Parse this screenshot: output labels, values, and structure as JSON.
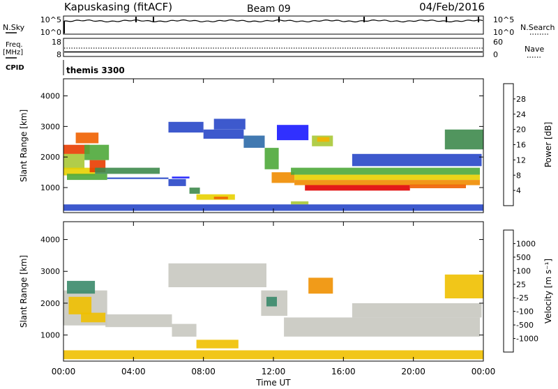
{
  "header": {
    "station": "Kapuskasing (fitACF)",
    "beam": "Beam 09",
    "date": "04/Feb/2016"
  },
  "params": {
    "nsky_label": "N.Sky",
    "nsearch_label": "N.Search",
    "freq_label_1": "Freq.",
    "freq_label_2": "[MHz]",
    "nave_label": "Nave",
    "cpid_label": "CPID",
    "program": "themis 3300",
    "left_ticks": [
      "10^5",
      "10^0",
      "18",
      "8"
    ],
    "right_ticks": [
      "10^5",
      "10^0",
      "60",
      "0"
    ]
  },
  "chart_data": [
    {
      "type": "heatmap",
      "title": "",
      "xlabel": "Time UT",
      "ylabel": "Slant Range [km]",
      "xlim": [
        0,
        24
      ],
      "ylim": [
        180,
        4560
      ],
      "x_ticks": [
        "00:00",
        "04:00",
        "08:00",
        "12:00",
        "16:00",
        "20:00",
        "00:00"
      ],
      "y_ticks": [
        "1000",
        "2000",
        "3000",
        "4000"
      ],
      "colorbar": {
        "label": "Power [dB]",
        "ticks": [
          "4",
          "8",
          "12",
          "16",
          "20",
          "24",
          "28"
        ],
        "colors": [
          "#1a1aff",
          "#2847c8",
          "#2c6aa8",
          "#3e8a4c",
          "#4ea83a",
          "#a8c836",
          "#e8d000",
          "#f4b400",
          "#f08c00",
          "#f06000",
          "#e83c00",
          "#e00000"
        ]
      },
      "regions": [
        {
          "t0": 0.0,
          "t1": 1.5,
          "r0": 2100,
          "r1": 2400,
          "v": 26
        },
        {
          "t0": 0.0,
          "t1": 1.2,
          "r0": 1600,
          "r1": 2100,
          "v": 14
        },
        {
          "t0": 0.0,
          "t1": 1.8,
          "r0": 1400,
          "r1": 1650,
          "v": 18
        },
        {
          "t0": 0.7,
          "t1": 2.0,
          "r0": 2450,
          "r1": 2800,
          "v": 24
        },
        {
          "t0": 1.5,
          "t1": 2.4,
          "r0": 1500,
          "r1": 1900,
          "v": 27
        },
        {
          "t0": 1.2,
          "t1": 2.6,
          "r0": 1900,
          "r1": 2400,
          "v": 13
        },
        {
          "t0": 0.2,
          "t1": 2.5,
          "r0": 1250,
          "r1": 1450,
          "v": 12
        },
        {
          "t0": 1.8,
          "t1": 5.5,
          "r0": 1450,
          "r1": 1650,
          "v": 9
        },
        {
          "t0": 2.5,
          "t1": 6.0,
          "r0": 1280,
          "r1": 1330,
          "v": 6
        },
        {
          "t0": 6.2,
          "t1": 7.2,
          "r0": 1300,
          "r1": 1360,
          "v": 4
        },
        {
          "t0": 6.0,
          "t1": 7.0,
          "r0": 1050,
          "r1": 1280,
          "v": 5
        },
        {
          "t0": 7.2,
          "t1": 7.8,
          "r0": 800,
          "r1": 1000,
          "v": 10
        },
        {
          "t0": 7.6,
          "t1": 9.8,
          "r0": 600,
          "r1": 780,
          "v": 16
        },
        {
          "t0": 8.6,
          "t1": 9.4,
          "r0": 620,
          "r1": 700,
          "v": 24
        },
        {
          "t0": 6.0,
          "t1": 8.0,
          "r0": 2800,
          "r1": 3150,
          "v": 5
        },
        {
          "t0": 8.0,
          "t1": 10.3,
          "r0": 2600,
          "r1": 2900,
          "v": 6
        },
        {
          "t0": 8.6,
          "t1": 10.4,
          "r0": 2900,
          "r1": 3250,
          "v": 5
        },
        {
          "t0": 10.3,
          "t1": 11.5,
          "r0": 2300,
          "r1": 2700,
          "v": 7
        },
        {
          "t0": 11.5,
          "t1": 12.3,
          "r0": 1600,
          "r1": 2300,
          "v": 12
        },
        {
          "t0": 11.9,
          "t1": 13.2,
          "r0": 1150,
          "r1": 1500,
          "v": 22
        },
        {
          "t0": 13.0,
          "t1": 23.8,
          "r0": 1420,
          "r1": 1650,
          "v": 13
        },
        {
          "t0": 13.2,
          "t1": 23.8,
          "r0": 1250,
          "r1": 1420,
          "v": 17
        },
        {
          "t0": 13.2,
          "t1": 23.8,
          "r0": 1080,
          "r1": 1250,
          "v": 22
        },
        {
          "t0": 13.8,
          "t1": 19.8,
          "r0": 900,
          "r1": 1080,
          "v": 28
        },
        {
          "t0": 19.8,
          "t1": 23.0,
          "r0": 980,
          "r1": 1100,
          "v": 24
        },
        {
          "t0": 14.2,
          "t1": 15.4,
          "r0": 2350,
          "r1": 2700,
          "v": 15
        },
        {
          "t0": 14.5,
          "t1": 15.2,
          "r0": 2500,
          "r1": 2650,
          "v": 20
        },
        {
          "t0": 16.5,
          "t1": 23.9,
          "r0": 1700,
          "r1": 2100,
          "v": 5
        },
        {
          "t0": 21.8,
          "t1": 24.0,
          "r0": 2250,
          "r1": 2900,
          "v": 10
        },
        {
          "t0": 12.2,
          "t1": 14.0,
          "r0": 2550,
          "r1": 3050,
          "v": 4
        },
        {
          "t0": 13.0,
          "t1": 14.0,
          "r0": 450,
          "r1": 550,
          "v": 14
        },
        {
          "t0": 0.0,
          "t1": 24.0,
          "r0": 240,
          "r1": 450,
          "v": 5
        }
      ]
    },
    {
      "type": "heatmap",
      "title": "",
      "xlabel": "Time UT",
      "ylabel": "Slant Range [km]",
      "xlim": [
        0,
        24
      ],
      "ylim": [
        180,
        4560
      ],
      "x_ticks": [
        "00:00",
        "04:00",
        "08:00",
        "12:00",
        "16:00",
        "20:00",
        "00:00"
      ],
      "y_ticks": [
        "1000",
        "2000",
        "3000",
        "4000"
      ],
      "colorbar": {
        "label": "Velocity [m s⁻¹]",
        "ticks": [
          "1000",
          "500",
          "100",
          "25",
          "-25",
          "-100",
          "-500",
          "-1000"
        ],
        "colors": [
          "#1c2fd0",
          "#2c66b8",
          "#3a8a6a",
          "#5fb04a",
          "#c8c8c0",
          "#c8c8c0",
          "#f0c000",
          "#f09000",
          "#f06000",
          "#e00000"
        ]
      },
      "regions": [
        {
          "t0": 0.0,
          "t1": 2.5,
          "r0": 1300,
          "r1": 2400,
          "v": 0
        },
        {
          "t0": 0.3,
          "t1": 1.6,
          "r0": 1650,
          "r1": 2200,
          "v": -300
        },
        {
          "t0": 1.0,
          "t1": 2.4,
          "r0": 1400,
          "r1": 1700,
          "v": -150
        },
        {
          "t0": 0.2,
          "t1": 1.8,
          "r0": 2300,
          "r1": 2700,
          "v": 150
        },
        {
          "t0": 2.4,
          "t1": 6.2,
          "r0": 1250,
          "r1": 1650,
          "v": 0
        },
        {
          "t0": 6.2,
          "t1": 7.6,
          "r0": 950,
          "r1": 1350,
          "v": 0
        },
        {
          "t0": 7.6,
          "t1": 10.0,
          "r0": 580,
          "r1": 850,
          "v": -300
        },
        {
          "t0": 6.0,
          "t1": 11.6,
          "r0": 2500,
          "r1": 3250,
          "v": 0
        },
        {
          "t0": 11.3,
          "t1": 12.8,
          "r0": 1600,
          "r1": 2400,
          "v": 0
        },
        {
          "t0": 11.6,
          "t1": 12.2,
          "r0": 1900,
          "r1": 2200,
          "v": 150
        },
        {
          "t0": 12.6,
          "t1": 23.8,
          "r0": 950,
          "r1": 1550,
          "v": 0
        },
        {
          "t0": 16.5,
          "t1": 23.9,
          "r0": 1550,
          "r1": 2000,
          "v": 0
        },
        {
          "t0": 14.0,
          "t1": 15.4,
          "r0": 2300,
          "r1": 2800,
          "v": -700
        },
        {
          "t0": 21.8,
          "t1": 24.0,
          "r0": 2150,
          "r1": 2900,
          "v": -200
        },
        {
          "t0": 0.0,
          "t1": 24.0,
          "r0": 240,
          "r1": 520,
          "v": -150
        }
      ]
    }
  ]
}
